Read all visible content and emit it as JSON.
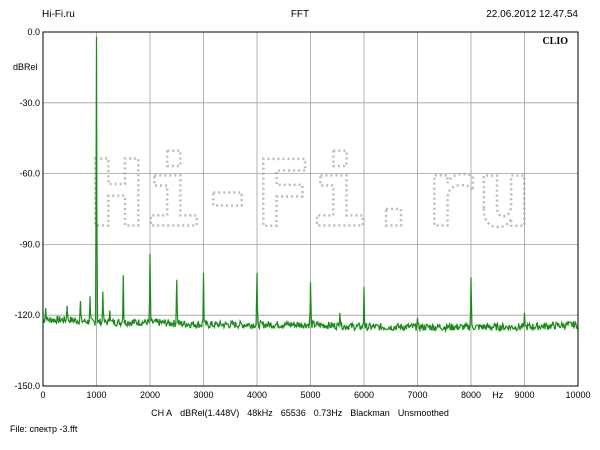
{
  "header": {
    "left": "Hi-Fi.ru",
    "center": "FFT",
    "right": "22.06.2012 12.47.54"
  },
  "badge": "CLIO",
  "watermark": "Hi-Fi.ru",
  "info_items": [
    "CH A",
    "dBRel(1.448V)",
    "48kHz",
    "65536",
    "0.73Hz",
    "Blackman",
    "Unsmoothed"
  ],
  "file_label": "File: спектр -3.fft",
  "chart_data": {
    "type": "line",
    "ylabel": "dBRel",
    "xlabel": "Hz",
    "xlim": [
      0,
      10000
    ],
    "ylim": [
      -150,
      0
    ],
    "x_ticks": [
      0,
      1000,
      2000,
      3000,
      4000,
      5000,
      6000,
      7000,
      8000,
      9000,
      10000
    ],
    "x_tick_labels": [
      "0",
      "1000",
      "2000",
      "3000",
      "4000",
      "5000",
      "6000",
      "7000",
      "8000",
      "9000",
      "10000"
    ],
    "y_ticks": [
      0,
      -30,
      -60,
      -90,
      -120,
      -150
    ],
    "y_tick_labels": [
      "0.0",
      "-30.0",
      "-60.0",
      "-90.0",
      "-120.0",
      "-150.0"
    ],
    "grid": true,
    "line_color": "#1a8a1a",
    "noise_floor": [
      {
        "x": 0,
        "y": -122
      },
      {
        "x": 500,
        "y": -122
      },
      {
        "x": 1000,
        "y": -123
      },
      {
        "x": 2000,
        "y": -123
      },
      {
        "x": 3000,
        "y": -124
      },
      {
        "x": 4000,
        "y": -124
      },
      {
        "x": 5000,
        "y": -124
      },
      {
        "x": 6000,
        "y": -125
      },
      {
        "x": 7000,
        "y": -125
      },
      {
        "x": 8000,
        "y": -125
      },
      {
        "x": 9000,
        "y": -125
      },
      {
        "x": 10000,
        "y": -124
      }
    ],
    "peaks": [
      {
        "x": 50,
        "y": -117
      },
      {
        "x": 450,
        "y": -116
      },
      {
        "x": 700,
        "y": -114
      },
      {
        "x": 880,
        "y": -112
      },
      {
        "x": 1000,
        "y": -2
      },
      {
        "x": 1120,
        "y": -110
      },
      {
        "x": 1250,
        "y": -118
      },
      {
        "x": 1500,
        "y": -103
      },
      {
        "x": 2000,
        "y": -94
      },
      {
        "x": 2500,
        "y": -105
      },
      {
        "x": 3000,
        "y": -102
      },
      {
        "x": 4000,
        "y": -102
      },
      {
        "x": 5000,
        "y": -106
      },
      {
        "x": 5550,
        "y": -119
      },
      {
        "x": 6000,
        "y": -108
      },
      {
        "x": 7000,
        "y": -121
      },
      {
        "x": 8000,
        "y": -104
      },
      {
        "x": 9000,
        "y": -119
      }
    ]
  }
}
